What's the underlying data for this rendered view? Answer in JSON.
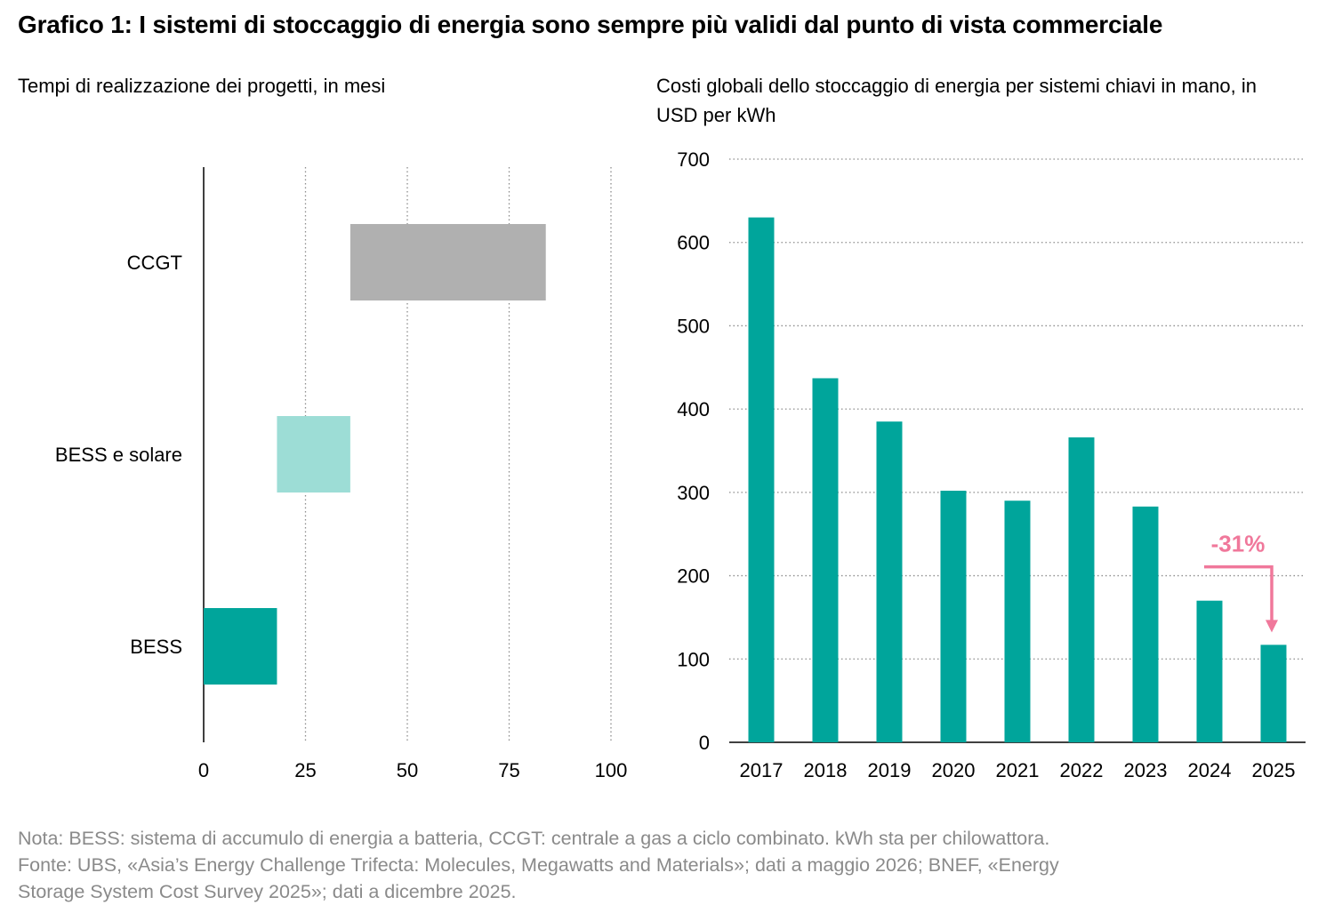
{
  "title": "Grafico 1: I sistemi di stoccaggio di energia sono sempre più validi dal punto di vista commerciale",
  "colors": {
    "teal": "#00a59b",
    "light_teal": "#9dddd6",
    "gray": "#b0b0b0",
    "pink": "#f0789b",
    "grid": "#8c8c8c"
  },
  "chart_data": [
    {
      "type": "bar",
      "orientation": "horizontal-range",
      "title": "Tempi di realizzazione dei progetti, in mesi",
      "categories": [
        "CCGT",
        "BESS e solare",
        "BESS"
      ],
      "ranges": [
        [
          36,
          84
        ],
        [
          18,
          36
        ],
        [
          0,
          18
        ]
      ],
      "colors": [
        "#b0b0b0",
        "#9dddd6",
        "#00a59b"
      ],
      "xlim": [
        0,
        100
      ],
      "xticks": [
        "0",
        "25",
        "50",
        "75",
        "100"
      ],
      "grid": "vertical dotted"
    },
    {
      "type": "bar",
      "title": "Costi globali dello stoccaggio di energia per sistemi chiavi in mano, in USD per kWh",
      "categories": [
        "2017",
        "2018",
        "2019",
        "2020",
        "2021",
        "2022",
        "2023",
        "2024",
        "2025"
      ],
      "values": [
        630,
        437,
        385,
        302,
        290,
        366,
        283,
        170,
        117
      ],
      "color": "#00a59b",
      "ylim": [
        0,
        700
      ],
      "yticks": [
        "0",
        "100",
        "200",
        "300",
        "400",
        "500",
        "600",
        "700"
      ],
      "grid": "horizontal dotted",
      "annotation": {
        "text": "-31%",
        "from": "2024",
        "to": "2025",
        "color": "#f0789b"
      }
    }
  ],
  "notes": [
    "Nota: BESS: sistema di accumulo di energia a batteria, CCGT: centrale a gas a ciclo combinato. kWh sta per chilowattora.",
    "Fonte: UBS, «Asia’s Energy Challenge Trifecta: Molecules, Megawatts and Materials»; dati a maggio 2026; BNEF, «Energy",
    "Storage System Cost Survey 2025»; dati a dicembre 2025."
  ]
}
